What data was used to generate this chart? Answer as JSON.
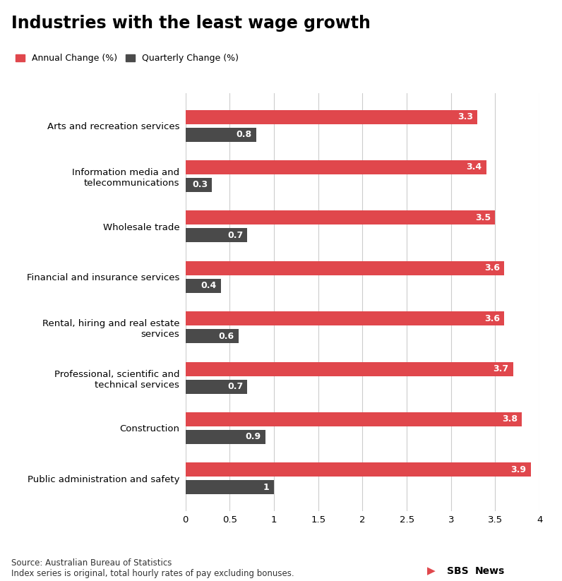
{
  "title": "Industries with the least wage growth",
  "legend_annual": "Annual Change (%)",
  "legend_quarterly": "Quarterly Change (%)",
  "categories": [
    "Public administration and safety",
    "Construction",
    "Professional, scientific and\ntechnical services",
    "Rental, hiring and real estate\nservices",
    "Financial and insurance services",
    "Wholesale trade",
    "Information media and\ntelecommunications",
    "Arts and recreation services"
  ],
  "annual_values": [
    3.9,
    3.8,
    3.7,
    3.6,
    3.6,
    3.5,
    3.4,
    3.3
  ],
  "quarterly_values": [
    1.0,
    0.9,
    0.7,
    0.6,
    0.4,
    0.7,
    0.3,
    0.8
  ],
  "annual_color": "#e0474c",
  "quarterly_color": "#4a4a4a",
  "bar_height": 0.28,
  "xlim": [
    0,
    4.0
  ],
  "xticks": [
    0,
    0.5,
    1.0,
    1.5,
    2.0,
    2.5,
    3.0,
    3.5,
    4.0
  ],
  "xtick_labels": [
    "0",
    "0.5",
    "1",
    "1.5",
    "2",
    "2.5",
    "3",
    "3.5",
    "4"
  ],
  "source_text": "Source: Australian Bureau of Statistics\nIndex series is original, total hourly rates of pay excluding bonuses.",
  "background_color": "#ffffff",
  "grid_color": "#cccccc",
  "label_fontsize": 9.5,
  "title_fontsize": 17,
  "value_fontsize": 9,
  "tick_fontsize": 9.5,
  "source_fontsize": 8.5,
  "legend_fontsize": 9
}
